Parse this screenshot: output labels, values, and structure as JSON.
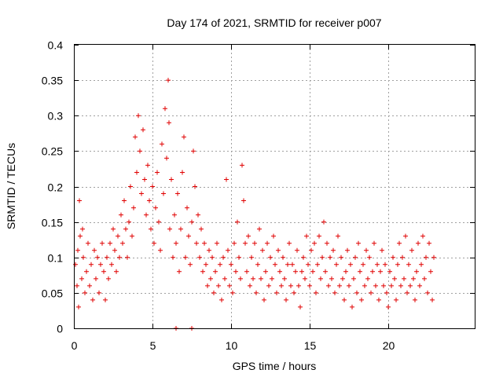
{
  "chart_data": {
    "type": "scatter",
    "title": "Day 174 of 2021, SRMTID for receiver p007",
    "xlabel": "GPS time / hours",
    "ylabel": "SRMTID / TECUs",
    "xlim": [
      0,
      25.5
    ],
    "ylim": [
      0,
      0.4
    ],
    "x_ticks": [
      0,
      5,
      10,
      15,
      20
    ],
    "x_tick_labels": [
      "0",
      "5",
      "10",
      "15",
      "20"
    ],
    "y_ticks": [
      0,
      0.05,
      0.1,
      0.15,
      0.2,
      0.25,
      0.3,
      0.35,
      0.4
    ],
    "y_tick_labels": [
      "0",
      "0.05",
      "0.1",
      "0.15",
      "0.2",
      "0.25",
      "0.3",
      "0.35",
      "0.4"
    ],
    "grid": true,
    "marker": "+",
    "color": "#e00000",
    "series": [
      {
        "name": "p007",
        "points": [
          [
            0.1,
            0.09
          ],
          [
            0.2,
            0.06
          ],
          [
            0.25,
            0.11
          ],
          [
            0.3,
            0.03
          ],
          [
            0.35,
            0.18
          ],
          [
            0.4,
            0.13
          ],
          [
            0.5,
            0.07
          ],
          [
            0.55,
            0.14
          ],
          [
            0.6,
            0.1
          ],
          [
            0.7,
            0.05
          ],
          [
            0.8,
            0.08
          ],
          [
            0.9,
            0.12
          ],
          [
            1.0,
            0.06
          ],
          [
            1.1,
            0.09
          ],
          [
            1.2,
            0.04
          ],
          [
            1.3,
            0.11
          ],
          [
            1.4,
            0.07
          ],
          [
            1.5,
            0.1
          ],
          [
            1.6,
            0.05
          ],
          [
            1.7,
            0.09
          ],
          [
            1.8,
            0.12
          ],
          [
            1.9,
            0.08
          ],
          [
            2.0,
            0.04
          ],
          [
            2.1,
            0.1
          ],
          [
            2.2,
            0.07
          ],
          [
            2.3,
            0.12
          ],
          [
            2.4,
            0.09
          ],
          [
            2.5,
            0.14
          ],
          [
            2.6,
            0.11
          ],
          [
            2.7,
            0.08
          ],
          [
            2.8,
            0.13
          ],
          [
            2.9,
            0.1
          ],
          [
            3.0,
            0.16
          ],
          [
            3.1,
            0.12
          ],
          [
            3.2,
            0.18
          ],
          [
            3.3,
            0.14
          ],
          [
            3.4,
            0.1
          ],
          [
            3.5,
            0.15
          ],
          [
            3.6,
            0.2
          ],
          [
            3.7,
            0.13
          ],
          [
            3.8,
            0.17
          ],
          [
            3.9,
            0.27
          ],
          [
            4.0,
            0.22
          ],
          [
            4.1,
            0.3
          ],
          [
            4.2,
            0.25
          ],
          [
            4.3,
            0.19
          ],
          [
            4.4,
            0.28
          ],
          [
            4.5,
            0.21
          ],
          [
            4.6,
            0.16
          ],
          [
            4.7,
            0.23
          ],
          [
            4.8,
            0.18
          ],
          [
            4.9,
            0.14
          ],
          [
            5.0,
            0.2
          ],
          [
            5.1,
            0.12
          ],
          [
            5.2,
            0.17
          ],
          [
            5.3,
            0.22
          ],
          [
            5.4,
            0.15
          ],
          [
            5.5,
            0.11
          ],
          [
            5.6,
            0.26
          ],
          [
            5.7,
            0.19
          ],
          [
            5.8,
            0.31
          ],
          [
            5.9,
            0.24
          ],
          [
            6.0,
            0.35
          ],
          [
            6.05,
            0.29
          ],
          [
            6.1,
            0.14
          ],
          [
            6.2,
            0.21
          ],
          [
            6.3,
            0.1
          ],
          [
            6.4,
            0.16
          ],
          [
            6.5,
            0.12
          ],
          [
            6.6,
            0.19
          ],
          [
            6.7,
            0.08
          ],
          [
            6.8,
            0.14
          ],
          [
            6.9,
            0.22
          ],
          [
            7.0,
            0.27
          ],
          [
            7.1,
            0.1
          ],
          [
            7.2,
            0.17
          ],
          [
            7.3,
            0.13
          ],
          [
            7.4,
            0.09
          ],
          [
            7.5,
            0.15
          ],
          [
            7.6,
            0.25
          ],
          [
            7.7,
            0.2
          ],
          [
            7.8,
            0.12
          ],
          [
            7.9,
            0.16
          ],
          [
            8.0,
            0.1
          ],
          [
            8.1,
            0.14
          ],
          [
            8.2,
            0.08
          ],
          [
            8.3,
            0.12
          ],
          [
            8.4,
            0.09
          ],
          [
            8.5,
            0.06
          ],
          [
            8.6,
            0.11
          ],
          [
            8.7,
            0.07
          ],
          [
            8.8,
            0.1
          ],
          [
            8.9,
            0.05
          ],
          [
            9.0,
            0.08
          ],
          [
            9.1,
            0.12
          ],
          [
            9.2,
            0.06
          ],
          [
            9.3,
            0.09
          ],
          [
            9.4,
            0.04
          ],
          [
            9.5,
            0.1
          ],
          [
            9.6,
            0.07
          ],
          [
            9.7,
            0.21
          ],
          [
            9.8,
            0.11
          ],
          [
            9.9,
            0.06
          ],
          [
            10.0,
            0.09
          ],
          [
            10.1,
            0.05
          ],
          [
            10.2,
            0.12
          ],
          [
            10.3,
            0.08
          ],
          [
            10.4,
            0.15
          ],
          [
            10.5,
            0.1
          ],
          [
            10.6,
            0.07
          ],
          [
            10.7,
            0.23
          ],
          [
            10.8,
            0.18
          ],
          [
            10.9,
            0.12
          ],
          [
            11.0,
            0.08
          ],
          [
            11.1,
            0.13
          ],
          [
            11.2,
            0.06
          ],
          [
            11.3,
            0.1
          ],
          [
            11.4,
            0.07
          ],
          [
            11.5,
            0.12
          ],
          [
            11.6,
            0.05
          ],
          [
            11.7,
            0.09
          ],
          [
            11.8,
            0.14
          ],
          [
            11.9,
            0.07
          ],
          [
            12.0,
            0.11
          ],
          [
            12.1,
            0.04
          ],
          [
            12.2,
            0.08
          ],
          [
            12.3,
            0.12
          ],
          [
            12.4,
            0.06
          ],
          [
            12.5,
            0.1
          ],
          [
            12.6,
            0.07
          ],
          [
            12.7,
            0.13
          ],
          [
            12.8,
            0.09
          ],
          [
            12.9,
            0.05
          ],
          [
            13.0,
            0.11
          ],
          [
            13.1,
            0.08
          ],
          [
            13.2,
            0.06
          ],
          [
            13.3,
            0.1
          ],
          [
            13.4,
            0.07
          ],
          [
            13.5,
            0.04
          ],
          [
            13.6,
            0.09
          ],
          [
            13.7,
            0.12
          ],
          [
            13.8,
            0.06
          ],
          [
            13.9,
            0.09
          ],
          [
            14.0,
            0.05
          ],
          [
            14.1,
            0.08
          ],
          [
            14.2,
            0.11
          ],
          [
            14.3,
            0.06
          ],
          [
            14.4,
            0.03
          ],
          [
            14.5,
            0.08
          ],
          [
            14.6,
            0.1
          ],
          [
            14.7,
            0.07
          ],
          [
            14.8,
            0.13
          ],
          [
            14.9,
            0.09
          ],
          [
            15.0,
            0.06
          ],
          [
            15.1,
            0.11
          ],
          [
            15.2,
            0.08
          ],
          [
            15.3,
            0.12
          ],
          [
            15.4,
            0.05
          ],
          [
            15.5,
            0.09
          ],
          [
            15.6,
            0.13
          ],
          [
            15.7,
            0.07
          ],
          [
            15.8,
            0.1
          ],
          [
            15.9,
            0.15
          ],
          [
            16.0,
            0.08
          ],
          [
            16.1,
            0.12
          ],
          [
            16.2,
            0.06
          ],
          [
            16.3,
            0.1
          ],
          [
            16.4,
            0.07
          ],
          [
            16.5,
            0.11
          ],
          [
            16.6,
            0.05
          ],
          [
            16.7,
            0.09
          ],
          [
            16.8,
            0.13
          ],
          [
            16.9,
            0.06
          ],
          [
            17.0,
            0.1
          ],
          [
            17.1,
            0.07
          ],
          [
            17.2,
            0.04
          ],
          [
            17.3,
            0.08
          ],
          [
            17.4,
            0.11
          ],
          [
            17.5,
            0.06
          ],
          [
            17.6,
            0.09
          ],
          [
            17.7,
            0.03
          ],
          [
            17.8,
            0.07
          ],
          [
            17.9,
            0.1
          ],
          [
            18.0,
            0.05
          ],
          [
            18.1,
            0.12
          ],
          [
            18.2,
            0.08
          ],
          [
            18.3,
            0.04
          ],
          [
            18.4,
            0.09
          ],
          [
            18.5,
            0.06
          ],
          [
            18.6,
            0.11
          ],
          [
            18.7,
            0.07
          ],
          [
            18.8,
            0.1
          ],
          [
            18.9,
            0.05
          ],
          [
            19.0,
            0.08
          ],
          [
            19.1,
            0.12
          ],
          [
            19.2,
            0.06
          ],
          [
            19.3,
            0.09
          ],
          [
            19.4,
            0.04
          ],
          [
            19.5,
            0.08
          ],
          [
            19.6,
            0.11
          ],
          [
            19.7,
            0.06
          ],
          [
            19.8,
            0.09
          ],
          [
            19.9,
            0.05
          ],
          [
            20.0,
            0.03
          ],
          [
            20.1,
            0.08
          ],
          [
            20.2,
            0.06
          ],
          [
            20.3,
            0.1
          ],
          [
            20.4,
            0.07
          ],
          [
            20.5,
            0.04
          ],
          [
            20.6,
            0.09
          ],
          [
            20.7,
            0.12
          ],
          [
            20.8,
            0.06
          ],
          [
            20.9,
            0.1
          ],
          [
            21.0,
            0.07
          ],
          [
            21.1,
            0.13
          ],
          [
            21.2,
            0.05
          ],
          [
            21.3,
            0.09
          ],
          [
            21.4,
            0.06
          ],
          [
            21.5,
            0.11
          ],
          [
            21.6,
            0.07
          ],
          [
            21.7,
            0.04
          ],
          [
            21.8,
            0.08
          ],
          [
            21.9,
            0.12
          ],
          [
            22.0,
            0.06
          ],
          [
            22.1,
            0.09
          ],
          [
            22.2,
            0.13
          ],
          [
            22.3,
            0.07
          ],
          [
            22.4,
            0.1
          ],
          [
            22.5,
            0.05
          ],
          [
            22.6,
            0.12
          ],
          [
            22.7,
            0.08
          ],
          [
            22.8,
            0.04
          ],
          [
            22.9,
            0.1
          ],
          [
            6.5,
            0.0
          ],
          [
            7.5,
            0.0
          ]
        ]
      }
    ]
  }
}
